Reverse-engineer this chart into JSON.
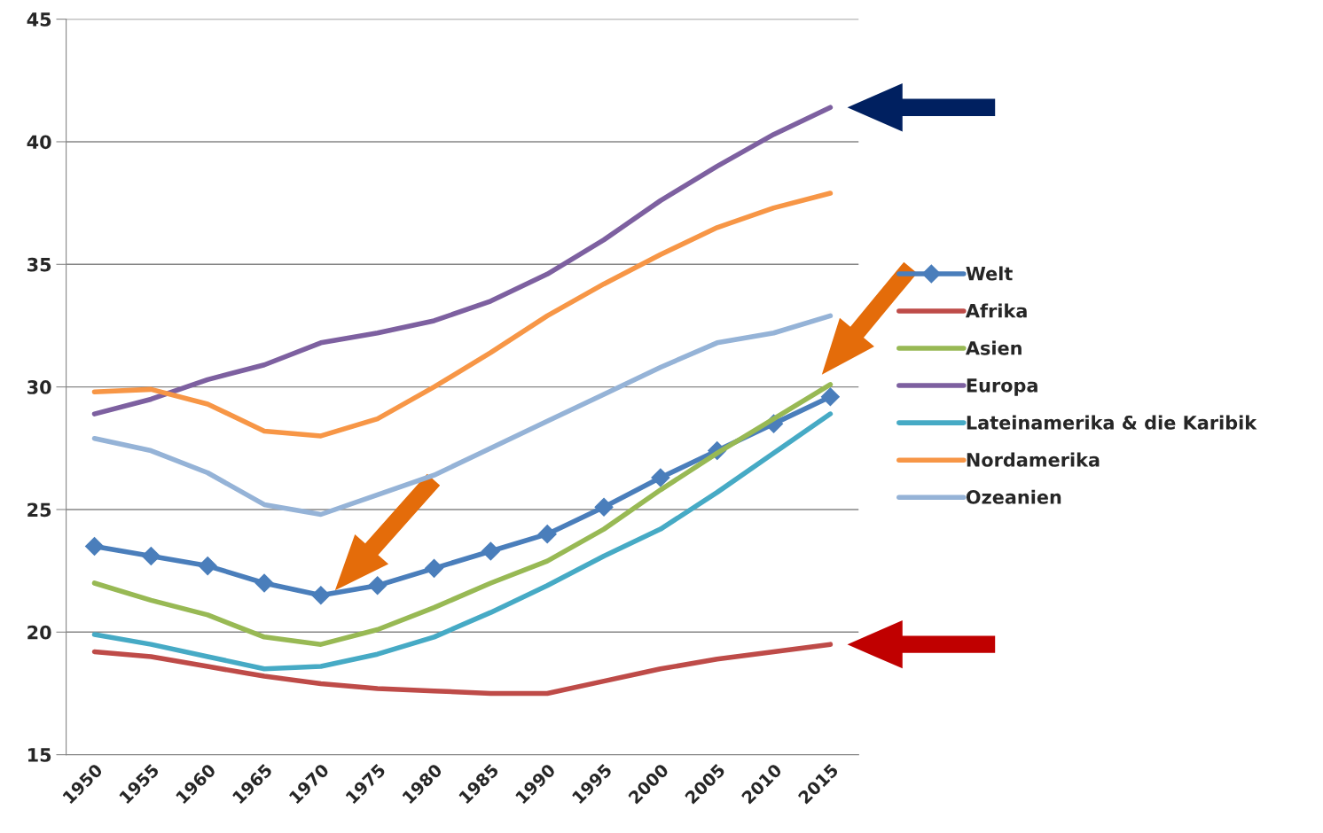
{
  "chart_data": {
    "type": "line",
    "categories": [
      "1950",
      "1955",
      "1960",
      "1965",
      "1970",
      "1975",
      "1980",
      "1985",
      "1990",
      "1995",
      "2000",
      "2005",
      "2010",
      "2015"
    ],
    "ylim": [
      15,
      45
    ],
    "yticks": [
      15,
      20,
      25,
      30,
      35,
      40,
      45
    ],
    "grid": "y",
    "legend": "right",
    "line_style": "solid",
    "series": [
      {
        "name": "Welt",
        "color": "#4a7ebb",
        "marker": "diamond",
        "values": [
          23.5,
          23.1,
          22.7,
          22.0,
          21.5,
          21.9,
          22.6,
          23.3,
          24.0,
          25.1,
          26.3,
          27.4,
          28.5,
          29.6
        ]
      },
      {
        "name": "Afrika",
        "color": "#be4b48",
        "values": [
          19.2,
          19.0,
          18.6,
          18.2,
          17.9,
          17.7,
          17.6,
          17.5,
          17.5,
          18.0,
          18.5,
          18.9,
          19.2,
          19.5
        ]
      },
      {
        "name": "Asien",
        "color": "#98b954",
        "values": [
          22.0,
          21.3,
          20.7,
          19.8,
          19.5,
          20.1,
          21.0,
          22.0,
          22.9,
          24.2,
          25.8,
          27.3,
          28.7,
          30.1
        ]
      },
      {
        "name": "Europa",
        "color": "#7d60a0",
        "values": [
          28.9,
          29.5,
          30.3,
          30.9,
          31.8,
          32.2,
          32.7,
          33.5,
          34.6,
          36.0,
          37.6,
          39.0,
          40.3,
          41.4
        ]
      },
      {
        "name": "Lateinamerika & die Karibik",
        "color": "#46aac5",
        "values": [
          19.9,
          19.5,
          19.0,
          18.5,
          18.6,
          19.1,
          19.8,
          20.8,
          21.9,
          23.1,
          24.2,
          25.7,
          27.3,
          28.9
        ]
      },
      {
        "name": "Nordamerika",
        "color": "#f79646",
        "values": [
          29.8,
          29.9,
          29.3,
          28.2,
          28.0,
          28.7,
          30.0,
          31.4,
          32.9,
          34.2,
          35.4,
          36.5,
          37.3,
          37.9
        ]
      },
      {
        "name": "Ozeanien",
        "color": "#95b3d7",
        "values": [
          27.9,
          27.4,
          26.5,
          25.2,
          24.8,
          25.6,
          26.4,
          27.5,
          28.6,
          29.7,
          30.8,
          31.8,
          32.2,
          32.9
        ]
      }
    ]
  }
}
